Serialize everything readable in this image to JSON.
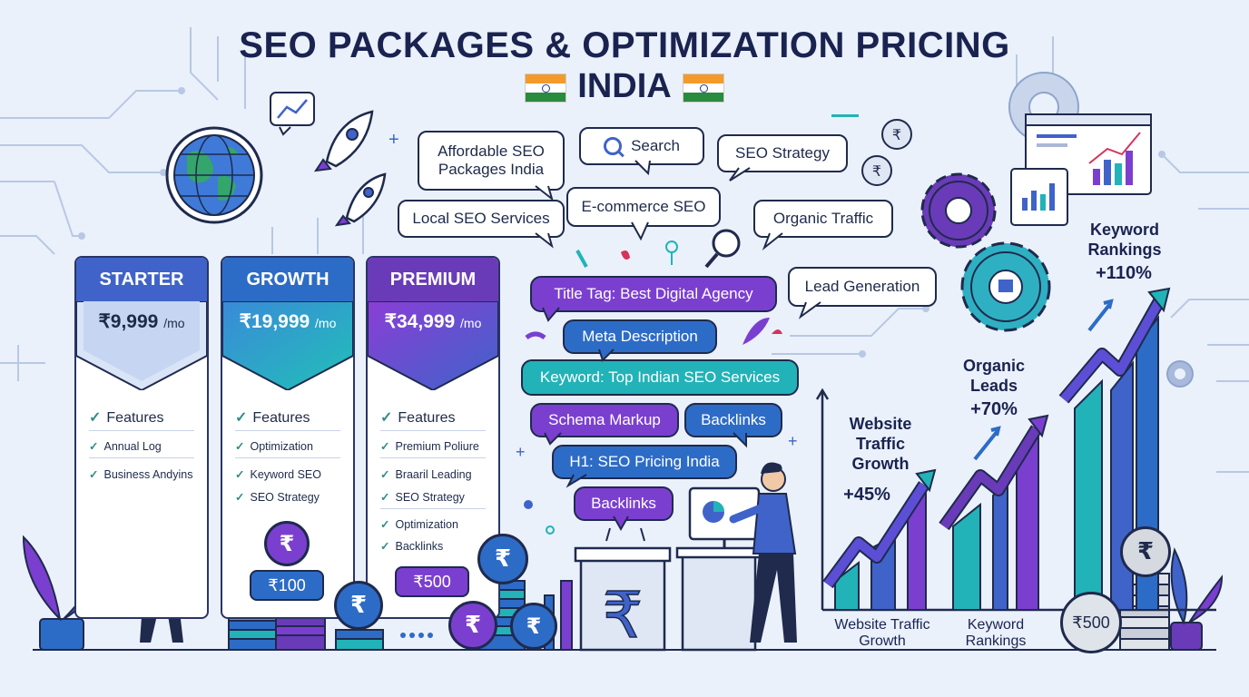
{
  "header": {
    "title": "SEO PACKAGES & OPTIMIZATION PRICING",
    "subtitle": "INDIA"
  },
  "plans": [
    {
      "name": "STARTER",
      "price": "₹9,999",
      "period": "/mo",
      "features_heading": "Features",
      "features": [
        "Annual Log",
        "Business Andyins"
      ]
    },
    {
      "name": "GROWTH",
      "price": "₹19,999",
      "period": "/mo",
      "features_heading": "Features",
      "features": [
        "Optimization",
        "Keyword SEO",
        "SEO Strategy"
      ],
      "coin_symbol": "₹",
      "price_tag": "₹100"
    },
    {
      "name": "PREMIUM",
      "price": "₹34,999",
      "period": "/mo",
      "features_heading": "Features",
      "features": [
        "Premium Poliure",
        "Braaril Leading",
        "SEO Strategy",
        "Optimization",
        "Backlinks"
      ],
      "price_tag": "₹500"
    }
  ],
  "bubbles": {
    "affordable": "Affordable SEO Packages India",
    "search": "Search",
    "strategy": "SEO Strategy",
    "local": "Local SEO Services",
    "ecommerce": "E-commerce SEO",
    "organic": "Organic Traffic",
    "lead": "Lead Generation"
  },
  "pills": {
    "title_tag": "Title Tag: Best Digital Agency",
    "meta": "Meta Description",
    "keyword": "Keyword: Top Indian SEO Services",
    "schema": "Schema Markup",
    "backlinks1": "Backlinks",
    "h1": "H1: SEO Pricing India",
    "backlinks2": "Backlinks"
  },
  "stats": {
    "traffic": {
      "label": "Website Traffic Growth",
      "value": "+45%"
    },
    "leads": {
      "label": "Organic Leads",
      "value": "+70%"
    },
    "rankings": {
      "label": "Keyword Rankings",
      "value": "+110%"
    }
  },
  "axis_labels": {
    "left": "Website Traffic Growth",
    "right": "Keyword Rankings"
  },
  "coins": {
    "symbol": "₹",
    "big_coin": "₹500"
  },
  "colors": {
    "starter": "#3f63c9",
    "growth": "#2d6cc6",
    "premium": "#6a3bb8",
    "teal": "#21b3b8",
    "purple": "#7b3fd0",
    "navy": "#1a2350"
  }
}
